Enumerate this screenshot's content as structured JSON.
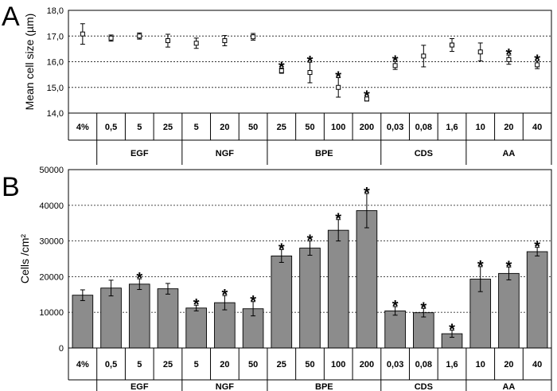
{
  "chart_data": [
    {
      "panel": "A",
      "type": "scatter",
      "ylabel": "Mean cell size (µm)",
      "ylim": [
        14.0,
        18.0
      ],
      "yticks": [
        "14,0",
        "15,0",
        "16,0",
        "17,0",
        "18,0"
      ],
      "grid": "horizontal dotted",
      "categories": [
        "4%",
        "0,5",
        "5",
        "25",
        "5",
        "20",
        "50",
        "25",
        "50",
        "100",
        "200",
        "0,03",
        "0,08",
        "1,6",
        "10",
        "20",
        "40"
      ],
      "groups": [
        {
          "label": "EGF",
          "from": 1,
          "to": 3
        },
        {
          "label": "NGF",
          "from": 4,
          "to": 6
        },
        {
          "label": "BPE",
          "from": 7,
          "to": 10
        },
        {
          "label": "CDS",
          "from": 11,
          "to": 13
        },
        {
          "label": "AA",
          "from": 14,
          "to": 16
        }
      ],
      "values": [
        17.08,
        16.92,
        17.0,
        16.82,
        16.72,
        16.82,
        16.97,
        15.65,
        15.58,
        15.0,
        14.55,
        15.85,
        16.22,
        16.65,
        16.38,
        16.08,
        15.88
      ],
      "errors": [
        0.4,
        0.12,
        0.12,
        0.25,
        0.2,
        0.2,
        0.13,
        0.1,
        0.4,
        0.38,
        0.08,
        0.15,
        0.42,
        0.25,
        0.35,
        0.18,
        0.15
      ],
      "significant": [
        false,
        false,
        false,
        false,
        false,
        false,
        false,
        true,
        true,
        true,
        true,
        true,
        false,
        false,
        false,
        true,
        true
      ],
      "marker": "*"
    },
    {
      "panel": "B",
      "type": "bar",
      "ylabel": "Cells /cm²",
      "ylim": [
        0,
        50000
      ],
      "yticks": [
        "0",
        "10000",
        "20000",
        "30000",
        "40000",
        "50000"
      ],
      "grid": "horizontal dotted",
      "categories": [
        "4%",
        "0,5",
        "5",
        "25",
        "5",
        "20",
        "50",
        "25",
        "50",
        "100",
        "200",
        "0,03",
        "0,08",
        "1,6",
        "10",
        "20",
        "40"
      ],
      "groups": [
        {
          "label": "EGF",
          "from": 1,
          "to": 3
        },
        {
          "label": "NGF",
          "from": 4,
          "to": 6
        },
        {
          "label": "BPE",
          "from": 7,
          "to": 10
        },
        {
          "label": "CDS",
          "from": 11,
          "to": 13
        },
        {
          "label": "AA",
          "from": 14,
          "to": 16
        }
      ],
      "values": [
        14800,
        16800,
        17900,
        16600,
        11200,
        12700,
        11000,
        25800,
        28000,
        33000,
        38500,
        10400,
        9900,
        4000,
        19300,
        20900,
        27000
      ],
      "errors": [
        1500,
        2200,
        1500,
        1500,
        800,
        2000,
        2000,
        1800,
        2000,
        3000,
        4800,
        1200,
        1200,
        1000,
        3500,
        1800,
        1200
      ],
      "significant": [
        false,
        false,
        true,
        false,
        true,
        true,
        true,
        true,
        true,
        true,
        true,
        true,
        true,
        true,
        true,
        true,
        true
      ],
      "marker": "*",
      "bar_color": "#8c8c8c"
    }
  ],
  "panels": {
    "a_letter": "A",
    "b_letter": "B"
  }
}
